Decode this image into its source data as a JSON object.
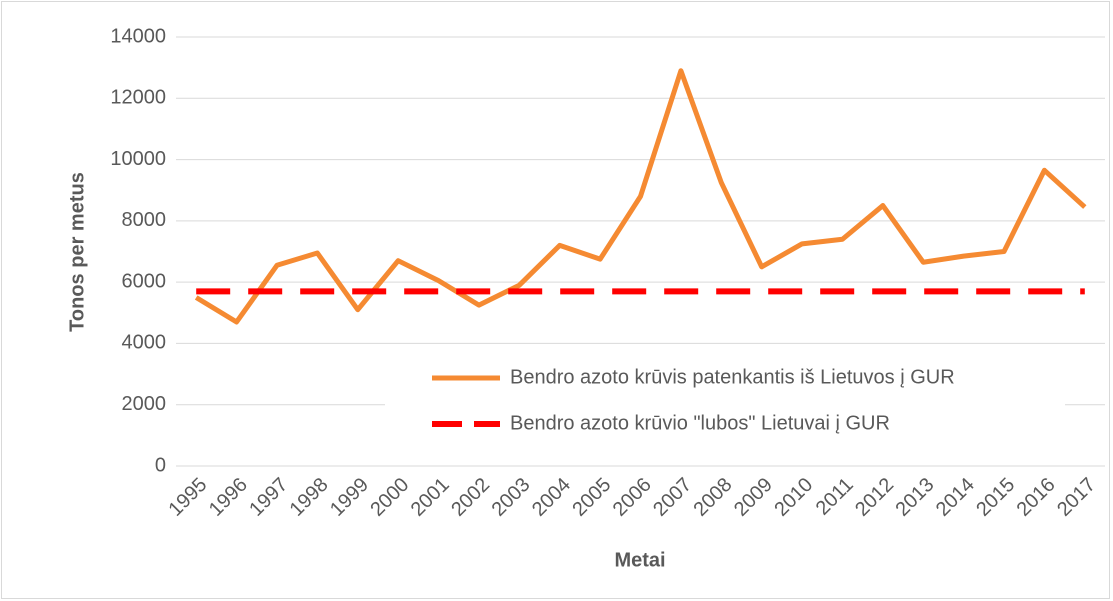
{
  "chart_data": {
    "type": "line",
    "x_label": "Metai",
    "y_label": "Tonos per metus",
    "categories": [
      "1995",
      "1996",
      "1997",
      "1998",
      "1999",
      "2000",
      "2001",
      "2002",
      "2003",
      "2004",
      "2005",
      "2006",
      "2007",
      "2008",
      "2009",
      "2010",
      "2011",
      "2012",
      "2013",
      "2014",
      "2015",
      "2016",
      "2017"
    ],
    "series": [
      {
        "name": "Bendro azoto krūvis patenkantis iš Lietuvos į GUR",
        "color": "#f58a32",
        "dash": false,
        "values": [
          5500,
          4700,
          6550,
          6950,
          5100,
          6700,
          6050,
          5250,
          5900,
          7200,
          6750,
          8800,
          12900,
          9250,
          6500,
          7250,
          7400,
          8500,
          6650,
          6850,
          7000,
          9650,
          8450
        ]
      },
      {
        "name": "Bendro azoto krūvio \"lubos\" Lietuvai į GUR",
        "color": "#ff0000",
        "dash": true,
        "values": [
          5700,
          5700,
          5700,
          5700,
          5700,
          5700,
          5700,
          5700,
          5700,
          5700,
          5700,
          5700,
          5700,
          5700,
          5700,
          5700,
          5700,
          5700,
          5700,
          5700,
          5700,
          5700,
          5700
        ]
      }
    ],
    "ylim": [
      0,
      14000
    ],
    "yticks": [
      0,
      2000,
      4000,
      6000,
      8000,
      10000,
      12000,
      14000
    ],
    "grid": true
  }
}
